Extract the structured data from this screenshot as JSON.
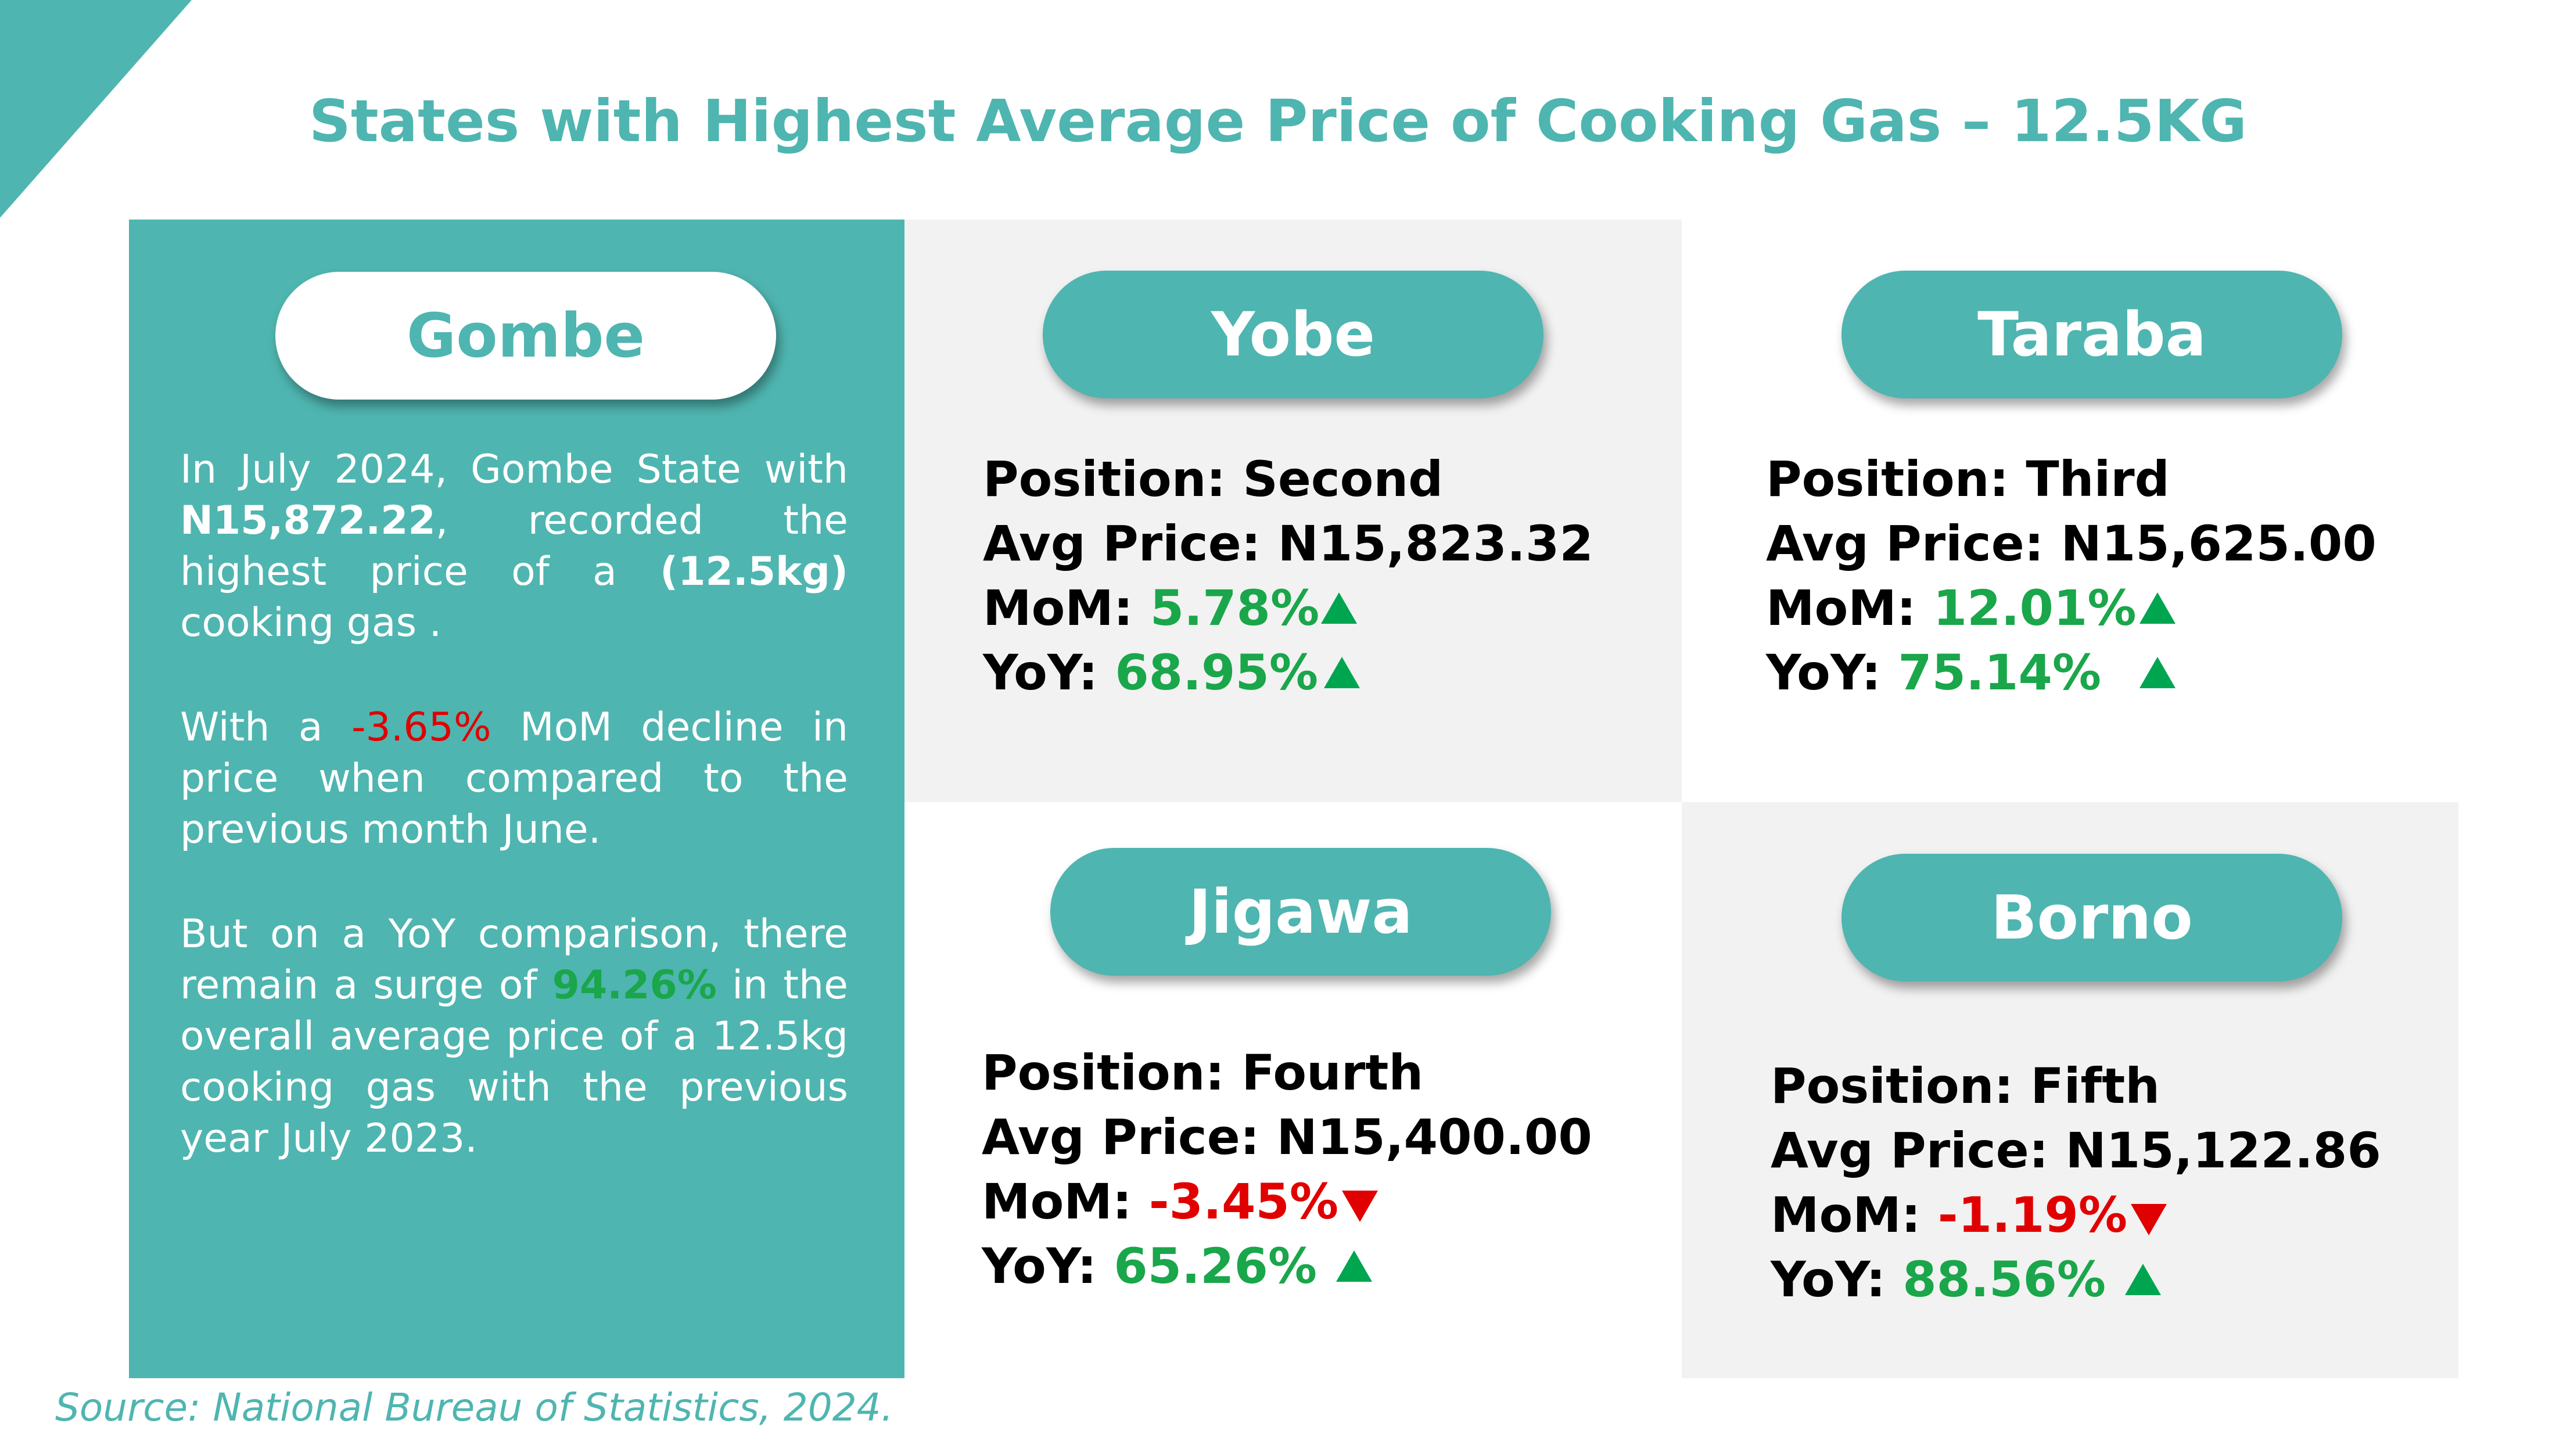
{
  "title": "States with Highest Average  Price of Cooking Gas – 12.5KG",
  "gombe": {
    "name": "Gombe",
    "para1_a": "In July 2024, Gombe State  with ",
    "para1_price": "N15,872.22",
    "para1_b": ", recorded the highest price of  a ",
    "para1_size": "(12.5kg)",
    "para1_c": " cooking gas .",
    "para2_a": "With a  ",
    "para2_mom": "-3.65%",
    "para2_b": "  MoM decline  in price  when  compared  to  the previous month June.",
    "para3_a": "But on a YoY comparison, there remain a surge of ",
    "para3_yoy": "94.26%",
    "para3_b": " in the overall average price of a 12.5kg cooking gas with the previous year July 2023."
  },
  "labels": {
    "position": "Position: ",
    "avg_price": "Avg Price: ",
    "mom": "MoM: ",
    "yoy": "YoY: "
  },
  "states": {
    "yobe": {
      "name": "Yobe",
      "position": "Second",
      "avg_price": "N15,823.32",
      "mom": "5.78%",
      "mom_dir": "up",
      "yoy": "68.95%",
      "yoy_dir": "up"
    },
    "taraba": {
      "name": "Taraba",
      "position": "Third",
      "avg_price": "N15,625.00",
      "mom": "12.01%",
      "mom_dir": "up",
      "yoy": "75.14%",
      "yoy_dir": "up"
    },
    "jigawa": {
      "name": "Jigawa",
      "position": "Fourth",
      "avg_price": "N15,400.00",
      "mom": "-3.45%",
      "mom_dir": "down",
      "yoy": "65.26%",
      "yoy_dir": "up"
    },
    "borno": {
      "name": "Borno",
      "position": "Fifth",
      "avg_price": "N15,122.86",
      "mom": "-1.19%",
      "mom_dir": "down",
      "yoy": "88.56%",
      "yoy_dir": "up"
    }
  },
  "colors": {
    "teal": "#4fb5b0",
    "panel_gray": "#f2f2f2",
    "positive": "#1aa64a",
    "negative": "#e00000",
    "arrow_up": "#00a550"
  },
  "icons": {
    "up": "triangle-up-icon",
    "down": "triangle-down-icon"
  },
  "source": "Source: National Bureau of Statistics, 2024."
}
